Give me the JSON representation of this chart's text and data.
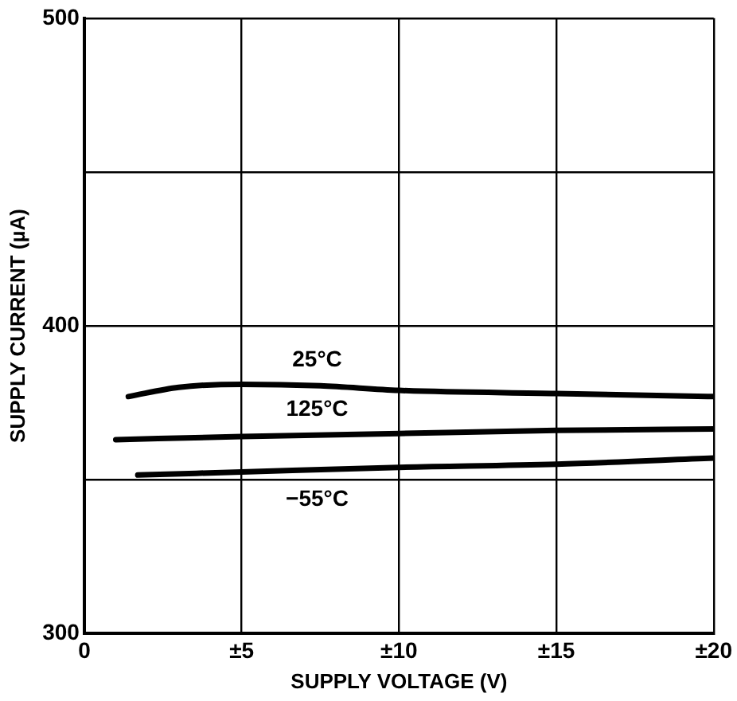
{
  "chart_data": {
    "type": "line",
    "xlabel": "SUPPLY VOLTAGE (V)",
    "ylabel": "SUPPLY CURRENT (µA)",
    "xlim": [
      0,
      20
    ],
    "xticks": [
      0,
      {
        "value": 5,
        "label": "±5"
      },
      {
        "value": 10,
        "label": "±10"
      },
      {
        "value": 15,
        "label": "±15"
      },
      {
        "value": 20,
        "label": "±20"
      }
    ],
    "ylim": [
      300,
      500
    ],
    "yticks": [
      300,
      {
        "value": 350,
        "label": null
      },
      400,
      {
        "value": 450,
        "label": null
      },
      500
    ],
    "grid": true,
    "legend": false,
    "marker": "none",
    "line_style": "solid",
    "series": [
      {
        "name": "25°C",
        "color": "#000000",
        "x": [
          1.4,
          3,
          5,
          7.5,
          10,
          15,
          20
        ],
        "values": [
          377,
          380,
          381,
          380.5,
          379,
          378,
          377
        ]
      },
      {
        "name": "125°C",
        "color": "#000000",
        "x": [
          1,
          5,
          10,
          15,
          20
        ],
        "values": [
          363,
          364,
          365,
          366,
          366.5
        ]
      },
      {
        "name": "−55°C",
        "color": "#000000",
        "x": [
          1.7,
          5,
          10,
          15,
          20
        ],
        "values": [
          351.5,
          352.5,
          354,
          355,
          357
        ]
      }
    ]
  }
}
